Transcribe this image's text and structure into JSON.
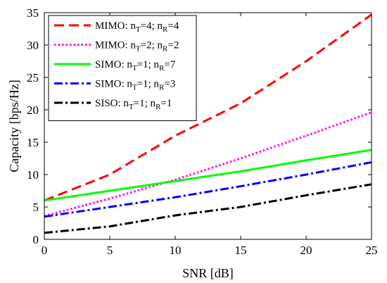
{
  "chart_data": {
    "type": "line",
    "xlabel": "SNR [dB]",
    "ylabel": "Capacity [bps/Hz]",
    "xlim": [
      0,
      25
    ],
    "ylim": [
      0,
      35
    ],
    "xticks": [
      "0",
      "5",
      "10",
      "15",
      "20",
      "25"
    ],
    "yticks": [
      "0",
      "5",
      "10",
      "15",
      "20",
      "25",
      "30",
      "35"
    ],
    "grid": false,
    "legend_position": "top-left",
    "x": [
      0,
      5,
      10,
      15,
      20,
      25
    ],
    "series": [
      {
        "name": "MIMO: nT=4; nR=4",
        "legend": {
          "prefix": "MIMO: n",
          "sub1": "T",
          "mid": "=4; n",
          "sub2": "R",
          "suffix": "=4"
        },
        "values": [
          6.0,
          10.0,
          16.0,
          21.0,
          27.5,
          34.7
        ],
        "color": "#ff0000",
        "dash": "dashed"
      },
      {
        "name": "MIMO: nT=2; nR=2",
        "legend": {
          "prefix": "MIMO: n",
          "sub1": "T",
          "mid": "=2; n",
          "sub2": "R",
          "suffix": "=2"
        },
        "values": [
          3.6,
          6.3,
          9.2,
          12.5,
          16.0,
          19.6
        ],
        "color": "#ff00ff",
        "dash": "dotted"
      },
      {
        "name": "SIMO: nT=1; nR=7",
        "legend": {
          "prefix": "SIMO: n",
          "sub1": "T",
          "mid": "=1; n",
          "sub2": "R",
          "suffix": "=7"
        },
        "values": [
          6.0,
          7.5,
          9.0,
          10.5,
          12.2,
          13.8
        ],
        "color": "#00ff00",
        "dash": "solid"
      },
      {
        "name": "SIMO: nT=1; nR=3",
        "legend": {
          "prefix": "SIMO: n",
          "sub1": "T",
          "mid": "=1; n",
          "sub2": "R",
          "suffix": "=3"
        },
        "values": [
          3.5,
          5.0,
          6.5,
          8.2,
          10.0,
          11.9
        ],
        "color": "#0000ff",
        "dash": "dashdot"
      },
      {
        "name": "SISO: nT=1; nR=1",
        "legend": {
          "prefix": "SISO: n",
          "sub1": "T",
          "mid": "=1; n",
          "sub2": "R",
          "suffix": "=1"
        },
        "values": [
          1.0,
          2.0,
          3.7,
          5.0,
          6.8,
          8.5
        ],
        "color": "#000000",
        "dash": "dashdot"
      }
    ]
  }
}
